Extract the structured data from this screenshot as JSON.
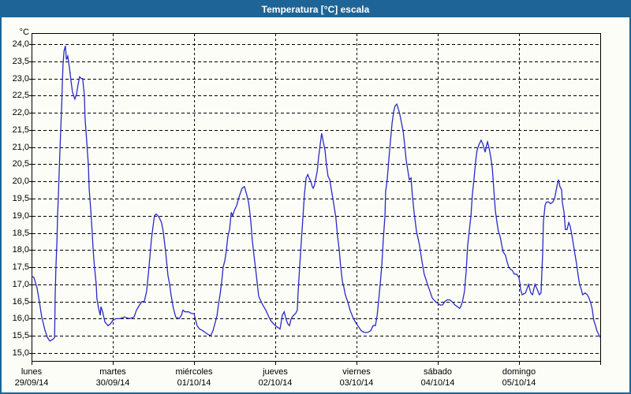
{
  "window": {
    "title": "Temperatura [°C] escala"
  },
  "colors": {
    "titlebar_bg": "#1f6496",
    "titlebar_text": "#ffffff",
    "window_border": "#1f6496",
    "chart_bg": "#fcfdf6",
    "grid": "#000000",
    "frame": "#000000",
    "line": "#2a2ac8"
  },
  "chart_data": {
    "type": "line",
    "title": "Temperatura [°C] escala",
    "y_unit": "°C",
    "y_min": 15.0,
    "y_max": 24.0,
    "y_step": 0.5,
    "y_tick_labels": [
      "24,0",
      "23,5",
      "23,0",
      "22,5",
      "22,0",
      "21,5",
      "21,0",
      "20,5",
      "20,0",
      "19,5",
      "19,0",
      "18,5",
      "18,0",
      "17,5",
      "17,0",
      "16,5",
      "16,0",
      "15,5",
      "15,0"
    ],
    "x_days": [
      {
        "name": "lunes",
        "date": "29/09/14"
      },
      {
        "name": "martes",
        "date": "30/09/14"
      },
      {
        "name": "miércoles",
        "date": "01/10/14"
      },
      {
        "name": "jueves",
        "date": "02/10/14"
      },
      {
        "name": "viernes",
        "date": "03/10/14"
      },
      {
        "name": "sábado",
        "date": "04/10/14"
      },
      {
        "name": "domingo",
        "date": "05/10/14"
      }
    ],
    "x_total_hours": 168,
    "grid_style": "dashed",
    "legend": "none",
    "series": [
      {
        "name": "Temperatura",
        "points": [
          [
            0,
            17.25
          ],
          [
            0.7,
            17.2
          ],
          [
            1.6,
            16.9
          ],
          [
            2.3,
            16.5
          ],
          [
            3,
            16.05
          ],
          [
            4,
            15.65
          ],
          [
            4.7,
            15.45
          ],
          [
            5.4,
            15.35
          ],
          [
            6.3,
            15.4
          ],
          [
            6.8,
            15.45
          ],
          [
            7,
            16.7
          ],
          [
            7.2,
            17.5
          ],
          [
            7.5,
            18.25
          ],
          [
            7.7,
            19
          ],
          [
            7.9,
            19.5
          ],
          [
            8.2,
            20.4
          ],
          [
            8.6,
            21.45
          ],
          [
            8.9,
            22.2
          ],
          [
            9.1,
            22.9
          ],
          [
            9.3,
            23.4
          ],
          [
            9.6,
            23.8
          ],
          [
            10,
            23.95
          ],
          [
            10.3,
            23.55
          ],
          [
            10.7,
            23.65
          ],
          [
            11.2,
            23.3
          ],
          [
            11.7,
            22.9
          ],
          [
            12.1,
            22.6
          ],
          [
            12.6,
            22.45
          ],
          [
            12.8,
            22.4
          ],
          [
            13.3,
            22.55
          ],
          [
            13.7,
            22.8
          ],
          [
            14.2,
            23.05
          ],
          [
            14.7,
            23
          ],
          [
            15.1,
            23
          ],
          [
            15.6,
            22.5
          ],
          [
            15.8,
            21.85
          ],
          [
            16.3,
            21.15
          ],
          [
            16.8,
            20.45
          ],
          [
            17,
            19.8
          ],
          [
            17.5,
            19.15
          ],
          [
            17.9,
            18.55
          ],
          [
            18.2,
            18
          ],
          [
            18.6,
            17.5
          ],
          [
            19.1,
            17
          ],
          [
            19.3,
            16.6
          ],
          [
            19.8,
            16.3
          ],
          [
            20.3,
            16.1
          ],
          [
            20.5,
            16.35
          ],
          [
            21,
            16.2
          ],
          [
            21.7,
            15.9
          ],
          [
            22.6,
            15.8
          ],
          [
            23.3,
            15.85
          ],
          [
            24,
            15.95
          ],
          [
            24.9,
            16
          ],
          [
            26.1,
            16
          ],
          [
            27.5,
            16.05
          ],
          [
            28.9,
            16
          ],
          [
            30.3,
            16.05
          ],
          [
            31,
            16.25
          ],
          [
            31.9,
            16.4
          ],
          [
            32.6,
            16.5
          ],
          [
            33.3,
            16.5
          ],
          [
            34,
            16.8
          ],
          [
            34.5,
            17.3
          ],
          [
            35,
            17.85
          ],
          [
            35.4,
            18.3
          ],
          [
            35.9,
            18.7
          ],
          [
            36.3,
            19
          ],
          [
            36.8,
            19.05
          ],
          [
            37.3,
            19
          ],
          [
            37.7,
            18.95
          ],
          [
            38.4,
            18.8
          ],
          [
            38.9,
            18.55
          ],
          [
            39.6,
            17.95
          ],
          [
            40.3,
            17.25
          ],
          [
            40.8,
            17
          ],
          [
            41.2,
            16.7
          ],
          [
            41.9,
            16.3
          ],
          [
            42.6,
            16.05
          ],
          [
            43.6,
            16
          ],
          [
            44.3,
            16.1
          ],
          [
            44.7,
            16.25
          ],
          [
            45.4,
            16.2
          ],
          [
            46.4,
            16.2
          ],
          [
            47.3,
            16.15
          ],
          [
            48,
            16.15
          ],
          [
            48.5,
            15.95
          ],
          [
            48.9,
            15.8
          ],
          [
            49.6,
            15.7
          ],
          [
            50.6,
            15.65
          ],
          [
            51.3,
            15.6
          ],
          [
            52,
            15.55
          ],
          [
            52.9,
            15.5
          ],
          [
            53.6,
            15.65
          ],
          [
            54.3,
            15.9
          ],
          [
            54.8,
            16.1
          ],
          [
            55.2,
            16.4
          ],
          [
            55.7,
            16.7
          ],
          [
            56.2,
            17.1
          ],
          [
            56.6,
            17.5
          ],
          [
            57.1,
            17.7
          ],
          [
            57.5,
            17.95
          ],
          [
            58,
            18.4
          ],
          [
            58.5,
            18.6
          ],
          [
            59,
            19.1
          ],
          [
            59.4,
            19
          ],
          [
            59.9,
            19.15
          ],
          [
            60.6,
            19.3
          ],
          [
            61.3,
            19.55
          ],
          [
            62.2,
            19.8
          ],
          [
            62.9,
            19.85
          ],
          [
            63.6,
            19.6
          ],
          [
            64.1,
            19.4
          ],
          [
            64.5,
            19.1
          ],
          [
            64.8,
            18.8
          ],
          [
            65.2,
            18.3
          ],
          [
            65.7,
            17.85
          ],
          [
            66.2,
            17.45
          ],
          [
            66.6,
            17.1
          ],
          [
            67.1,
            16.65
          ],
          [
            67.6,
            16.55
          ],
          [
            68.3,
            16.4
          ],
          [
            69.2,
            16.25
          ],
          [
            69.9,
            16.1
          ],
          [
            70.6,
            15.95
          ],
          [
            71.5,
            15.85
          ],
          [
            72,
            15.8
          ],
          [
            72.7,
            15.75
          ],
          [
            73.4,
            15.7
          ],
          [
            74.1,
            16.1
          ],
          [
            74.6,
            16.2
          ],
          [
            75.3,
            15.95
          ],
          [
            75.7,
            15.85
          ],
          [
            76.2,
            15.8
          ],
          [
            76.7,
            16
          ],
          [
            77.4,
            16.1
          ],
          [
            78,
            16.15
          ],
          [
            78.5,
            16.25
          ],
          [
            78.7,
            16.7
          ],
          [
            79.2,
            17.5
          ],
          [
            79.7,
            18.25
          ],
          [
            80.2,
            19
          ],
          [
            80.6,
            19.6
          ],
          [
            81.1,
            20.1
          ],
          [
            81.6,
            20.2
          ],
          [
            82,
            20.1
          ],
          [
            82.5,
            20
          ],
          [
            82.9,
            19.85
          ],
          [
            83.2,
            19.8
          ],
          [
            83.6,
            19.9
          ],
          [
            83.9,
            20.05
          ],
          [
            84.4,
            20.3
          ],
          [
            84.8,
            20.7
          ],
          [
            85.3,
            21.1
          ],
          [
            85.7,
            21.4
          ],
          [
            86.2,
            21.15
          ],
          [
            86.7,
            20.9
          ],
          [
            87.1,
            20.5
          ],
          [
            87.6,
            20.15
          ],
          [
            88.1,
            20.05
          ],
          [
            88.5,
            19.8
          ],
          [
            89,
            19.5
          ],
          [
            89.5,
            19.2
          ],
          [
            89.9,
            18.95
          ],
          [
            90.4,
            18.4
          ],
          [
            90.9,
            18
          ],
          [
            91.3,
            17.55
          ],
          [
            91.8,
            17.1
          ],
          [
            92.3,
            16.9
          ],
          [
            92.7,
            16.7
          ],
          [
            93.4,
            16.5
          ],
          [
            94.1,
            16.25
          ],
          [
            95.1,
            16
          ],
          [
            96,
            15.85
          ],
          [
            96.7,
            15.75
          ],
          [
            97.4,
            15.65
          ],
          [
            98.3,
            15.6
          ],
          [
            99.3,
            15.6
          ],
          [
            100.2,
            15.65
          ],
          [
            100.9,
            15.8
          ],
          [
            101.6,
            15.8
          ],
          [
            102.1,
            16.1
          ],
          [
            102.5,
            16.5
          ],
          [
            103,
            17
          ],
          [
            103.5,
            17.6
          ],
          [
            103.9,
            18.3
          ],
          [
            104.4,
            19
          ],
          [
            104.6,
            19.7
          ],
          [
            105.1,
            20.1
          ],
          [
            105.6,
            20.7
          ],
          [
            106,
            21.15
          ],
          [
            106.5,
            21.7
          ],
          [
            107,
            22.05
          ],
          [
            107.4,
            22.2
          ],
          [
            107.9,
            22.25
          ],
          [
            108.4,
            22.1
          ],
          [
            108.8,
            21.95
          ],
          [
            109.3,
            21.7
          ],
          [
            109.8,
            21.45
          ],
          [
            110.2,
            21.1
          ],
          [
            110.7,
            20.6
          ],
          [
            111.2,
            20.3
          ],
          [
            111.6,
            20.05
          ],
          [
            112.1,
            20.1
          ],
          [
            112.5,
            19.6
          ],
          [
            113,
            19.1
          ],
          [
            113.7,
            18.55
          ],
          [
            114.6,
            18.15
          ],
          [
            115.3,
            17.7
          ],
          [
            116,
            17.3
          ],
          [
            117,
            17
          ],
          [
            117.7,
            16.8
          ],
          [
            118.4,
            16.6
          ],
          [
            119.3,
            16.5
          ],
          [
            120,
            16.45
          ],
          [
            120.7,
            16.4
          ],
          [
            121.4,
            16.4
          ],
          [
            122.1,
            16.5
          ],
          [
            122.8,
            16.55
          ],
          [
            123.5,
            16.55
          ],
          [
            124.2,
            16.5
          ],
          [
            125.1,
            16.4
          ],
          [
            125.8,
            16.35
          ],
          [
            126.5,
            16.3
          ],
          [
            127,
            16.4
          ],
          [
            127.4,
            16.55
          ],
          [
            127.9,
            16.8
          ],
          [
            128.4,
            17.4
          ],
          [
            128.8,
            18.1
          ],
          [
            129.3,
            18.55
          ],
          [
            129.8,
            19
          ],
          [
            130.2,
            19.6
          ],
          [
            130.7,
            20.05
          ],
          [
            131.2,
            20.6
          ],
          [
            131.6,
            20.9
          ],
          [
            132.1,
            21.05
          ],
          [
            132.8,
            21.2
          ],
          [
            133.3,
            21.1
          ],
          [
            134,
            20.85
          ],
          [
            134.4,
            21.05
          ],
          [
            134.7,
            21.15
          ],
          [
            135.1,
            21
          ],
          [
            135.6,
            20.75
          ],
          [
            136.1,
            20.4
          ],
          [
            136.5,
            19.85
          ],
          [
            137,
            19.15
          ],
          [
            137.5,
            18.8
          ],
          [
            137.9,
            18.55
          ],
          [
            138.4,
            18.4
          ],
          [
            138.9,
            18.15
          ],
          [
            139.3,
            17.95
          ],
          [
            140,
            17.85
          ],
          [
            140.5,
            17.65
          ],
          [
            141,
            17.5
          ],
          [
            141.4,
            17.45
          ],
          [
            142.1,
            17.4
          ],
          [
            142.6,
            17.3
          ],
          [
            143.3,
            17.3
          ],
          [
            144,
            17.2
          ],
          [
            144.5,
            16.85
          ],
          [
            144.9,
            16.7
          ],
          [
            145.9,
            16.75
          ],
          [
            146.8,
            17
          ],
          [
            147.5,
            16.75
          ],
          [
            148,
            16.7
          ],
          [
            148.7,
            17
          ],
          [
            149.4,
            16.85
          ],
          [
            150,
            16.7
          ],
          [
            150.5,
            16.75
          ],
          [
            151,
            17.9
          ],
          [
            151.2,
            18.8
          ],
          [
            151.7,
            19.3
          ],
          [
            152.1,
            19.4
          ],
          [
            152.8,
            19.4
          ],
          [
            153.3,
            19.35
          ],
          [
            154,
            19.4
          ],
          [
            154.5,
            19.5
          ],
          [
            155,
            19.75
          ],
          [
            155.4,
            19.95
          ],
          [
            155.7,
            20.05
          ],
          [
            156.1,
            19.85
          ],
          [
            156.6,
            19.75
          ],
          [
            156.8,
            19.4
          ],
          [
            157.3,
            19.1
          ],
          [
            157.7,
            18.6
          ],
          [
            158.2,
            18.6
          ],
          [
            158.7,
            18.8
          ],
          [
            159.1,
            18.7
          ],
          [
            159.6,
            18.45
          ],
          [
            160.1,
            18.15
          ],
          [
            160.5,
            17.9
          ],
          [
            161,
            17.6
          ],
          [
            161.5,
            17.25
          ],
          [
            161.9,
            17
          ],
          [
            162.4,
            16.85
          ],
          [
            162.8,
            16.7
          ],
          [
            163.5,
            16.75
          ],
          [
            164.2,
            16.7
          ],
          [
            164.7,
            16.6
          ],
          [
            165.2,
            16.45
          ],
          [
            165.6,
            16.3
          ],
          [
            166.1,
            15.95
          ],
          [
            166.6,
            15.8
          ],
          [
            167,
            15.65
          ],
          [
            167.5,
            15.55
          ],
          [
            168,
            15.45
          ]
        ]
      }
    ]
  }
}
